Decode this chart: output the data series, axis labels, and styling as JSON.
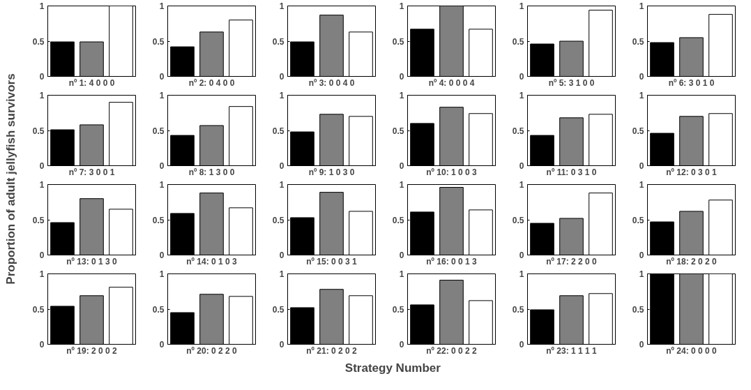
{
  "chart_data": [
    {
      "type": "bar",
      "xlabel": "nº 1: 4 0 0 0",
      "ylabel": "Proportion of adult jellyfish survivors",
      "annotations": [
        "Strategy Number"
      ],
      "categories": [
        null,
        null,
        null
      ],
      "values": [
        0.49,
        0.49,
        1
      ],
      "colors": [
        "#000000",
        "#808080",
        "#ffffff"
      ],
      "ylim": [
        0,
        1
      ],
      "yticks": [
        0,
        0.5,
        1
      ]
    },
    {
      "type": "bar",
      "xlabel": "nº 2: 0 4 0 0",
      "categories": [
        null,
        null,
        null
      ],
      "values": [
        0.42,
        0.63,
        0.8
      ],
      "colors": [
        "#000000",
        "#808080",
        "#ffffff"
      ],
      "ylim": [
        0,
        1
      ],
      "yticks": [
        0,
        0.5,
        1
      ]
    },
    {
      "type": "bar",
      "xlabel": "nº 3: 0 0 4 0",
      "categories": [
        null,
        null,
        null
      ],
      "values": [
        0.49,
        0.87,
        0.63
      ],
      "colors": [
        "#000000",
        "#808080",
        "#ffffff"
      ],
      "ylim": [
        0,
        1
      ],
      "yticks": [
        0,
        0.5,
        1
      ]
    },
    {
      "type": "bar",
      "xlabel": "nº 4: 0 0 0 4",
      "categories": [
        null,
        null,
        null
      ],
      "values": [
        0.67,
        1,
        0.67
      ],
      "colors": [
        "#000000",
        "#808080",
        "#ffffff"
      ],
      "ylim": [
        0,
        1
      ],
      "yticks": [
        0,
        0.5,
        1
      ]
    },
    {
      "type": "bar",
      "xlabel": "nº 5: 3 1 0 0",
      "categories": [
        null,
        null,
        null
      ],
      "values": [
        0.46,
        0.5,
        0.94
      ],
      "colors": [
        "#000000",
        "#808080",
        "#ffffff"
      ],
      "ylim": [
        0,
        1
      ],
      "yticks": [
        0,
        0.5,
        1
      ]
    },
    {
      "type": "bar",
      "xlabel": "nº 6: 3 0 1 0",
      "categories": [
        null,
        null,
        null
      ],
      "values": [
        0.48,
        0.55,
        0.88
      ],
      "colors": [
        "#000000",
        "#808080",
        "#ffffff"
      ],
      "ylim": [
        0,
        1
      ],
      "yticks": [
        0,
        0.5,
        1
      ]
    },
    {
      "type": "bar",
      "xlabel": "nº 7: 3 0 0 1",
      "categories": [
        null,
        null,
        null
      ],
      "values": [
        0.51,
        0.58,
        0.9
      ],
      "colors": [
        "#000000",
        "#808080",
        "#ffffff"
      ],
      "ylim": [
        0,
        1
      ],
      "yticks": [
        0,
        0.5,
        1
      ]
    },
    {
      "type": "bar",
      "xlabel": "nº 8: 1 3 0 0",
      "categories": [
        null,
        null,
        null
      ],
      "values": [
        0.43,
        0.57,
        0.84
      ],
      "colors": [
        "#000000",
        "#808080",
        "#ffffff"
      ],
      "ylim": [
        0,
        1
      ],
      "yticks": [
        0,
        0.5,
        1
      ]
    },
    {
      "type": "bar",
      "xlabel": "nº 9: 1 0 3 0",
      "categories": [
        null,
        null,
        null
      ],
      "values": [
        0.48,
        0.73,
        0.7
      ],
      "colors": [
        "#000000",
        "#808080",
        "#ffffff"
      ],
      "ylim": [
        0,
        1
      ],
      "yticks": [
        0,
        0.5,
        1
      ]
    },
    {
      "type": "bar",
      "xlabel": "nº 10: 1 0 0 3",
      "categories": [
        null,
        null,
        null
      ],
      "values": [
        0.6,
        0.83,
        0.74
      ],
      "colors": [
        "#000000",
        "#808080",
        "#ffffff"
      ],
      "ylim": [
        0,
        1
      ],
      "yticks": [
        0,
        0.5,
        1
      ]
    },
    {
      "type": "bar",
      "xlabel": "nº 11: 0 3 1 0",
      "categories": [
        null,
        null,
        null
      ],
      "values": [
        0.43,
        0.68,
        0.73
      ],
      "colors": [
        "#000000",
        "#808080",
        "#ffffff"
      ],
      "ylim": [
        0,
        1
      ],
      "yticks": [
        0,
        0.5,
        1
      ]
    },
    {
      "type": "bar",
      "xlabel": "nº 12: 0 3 0 1",
      "categories": [
        null,
        null,
        null
      ],
      "values": [
        0.46,
        0.7,
        0.74
      ],
      "colors": [
        "#000000",
        "#808080",
        "#ffffff"
      ],
      "ylim": [
        0,
        1
      ],
      "yticks": [
        0,
        0.5,
        1
      ]
    },
    {
      "type": "bar",
      "xlabel": "nº 13: 0 1 3 0",
      "categories": [
        null,
        null,
        null
      ],
      "values": [
        0.46,
        0.8,
        0.65
      ],
      "colors": [
        "#000000",
        "#808080",
        "#ffffff"
      ],
      "ylim": [
        0,
        1
      ],
      "yticks": [
        0,
        0.5,
        1
      ]
    },
    {
      "type": "bar",
      "xlabel": "nº 14: 0 1 0 3",
      "categories": [
        null,
        null,
        null
      ],
      "values": [
        0.59,
        0.88,
        0.67
      ],
      "colors": [
        "#000000",
        "#808080",
        "#ffffff"
      ],
      "ylim": [
        0,
        1
      ],
      "yticks": [
        0,
        0.5,
        1
      ]
    },
    {
      "type": "bar",
      "xlabel": "nº 15: 0 0 3 1",
      "categories": [
        null,
        null,
        null
      ],
      "values": [
        0.53,
        0.89,
        0.62
      ],
      "colors": [
        "#000000",
        "#808080",
        "#ffffff"
      ],
      "ylim": [
        0,
        1
      ],
      "yticks": [
        0,
        0.5,
        1
      ]
    },
    {
      "type": "bar",
      "xlabel": "nº 16: 0 0 1 3",
      "categories": [
        null,
        null,
        null
      ],
      "values": [
        0.61,
        0.96,
        0.64
      ],
      "colors": [
        "#000000",
        "#808080",
        "#ffffff"
      ],
      "ylim": [
        0,
        1
      ],
      "yticks": [
        0,
        0.5,
        1
      ]
    },
    {
      "type": "bar",
      "xlabel": "nº 17: 2 2 0 0",
      "categories": [
        null,
        null,
        null
      ],
      "values": [
        0.45,
        0.52,
        0.88
      ],
      "colors": [
        "#000000",
        "#808080",
        "#ffffff"
      ],
      "ylim": [
        0,
        1
      ],
      "yticks": [
        0,
        0.5,
        1
      ]
    },
    {
      "type": "bar",
      "xlabel": "nº 18: 2 0 2 0",
      "categories": [
        null,
        null,
        null
      ],
      "values": [
        0.47,
        0.62,
        0.78
      ],
      "colors": [
        "#000000",
        "#808080",
        "#ffffff"
      ],
      "ylim": [
        0,
        1
      ],
      "yticks": [
        0,
        0.5,
        1
      ]
    },
    {
      "type": "bar",
      "xlabel": "nº 19: 2 0 0 2",
      "categories": [
        null,
        null,
        null
      ],
      "values": [
        0.54,
        0.69,
        0.81
      ],
      "colors": [
        "#000000",
        "#808080",
        "#ffffff"
      ],
      "ylim": [
        0,
        1
      ],
      "yticks": [
        0,
        0.5,
        1
      ]
    },
    {
      "type": "bar",
      "xlabel": "nº 20: 0 2 2 0",
      "categories": [
        null,
        null,
        null
      ],
      "values": [
        0.45,
        0.71,
        0.68
      ],
      "colors": [
        "#000000",
        "#808080",
        "#ffffff"
      ],
      "ylim": [
        0,
        1
      ],
      "yticks": [
        0,
        0.5,
        1
      ]
    },
    {
      "type": "bar",
      "xlabel": "nº 21: 0 2 0 2",
      "categories": [
        null,
        null,
        null
      ],
      "values": [
        0.52,
        0.78,
        0.69
      ],
      "colors": [
        "#000000",
        "#808080",
        "#ffffff"
      ],
      "ylim": [
        0,
        1
      ],
      "yticks": [
        0,
        0.5,
        1
      ]
    },
    {
      "type": "bar",
      "xlabel": "nº 22: 0 0 2 2",
      "categories": [
        null,
        null,
        null
      ],
      "values": [
        0.56,
        0.91,
        0.62
      ],
      "colors": [
        "#000000",
        "#808080",
        "#ffffff"
      ],
      "ylim": [
        0,
        1
      ],
      "yticks": [
        0,
        0.5,
        1
      ]
    },
    {
      "type": "bar",
      "xlabel": "nº 23: 1 1 1 1",
      "categories": [
        null,
        null,
        null
      ],
      "values": [
        0.49,
        0.69,
        0.72
      ],
      "colors": [
        "#000000",
        "#808080",
        "#ffffff"
      ],
      "ylim": [
        0,
        1
      ],
      "yticks": [
        0,
        0.5,
        1
      ]
    },
    {
      "type": "bar",
      "xlabel": "nº 24: 0 0 0 0",
      "categories": [
        null,
        null,
        null
      ],
      "values": [
        1,
        1,
        1
      ],
      "colors": [
        "#000000",
        "#808080",
        "#ffffff"
      ],
      "ylim": [
        0,
        1
      ],
      "yticks": [
        0,
        0.5,
        1
      ]
    }
  ]
}
